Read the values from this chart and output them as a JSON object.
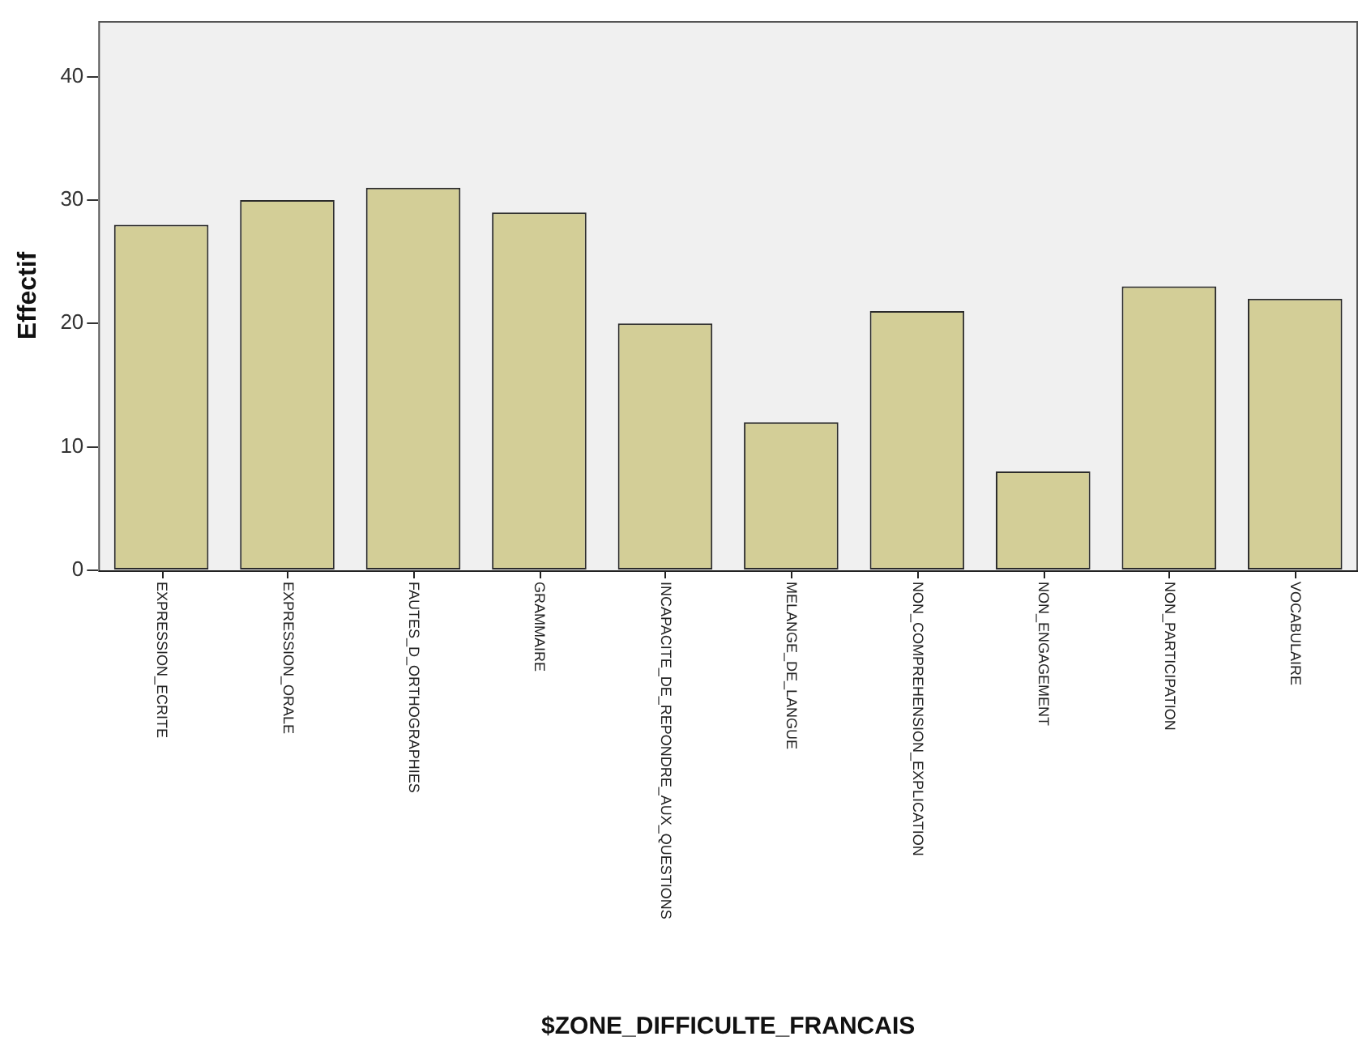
{
  "chart_data": {
    "type": "bar",
    "xlabel": "$ZONE_DIFFICULTE_FRANCAIS",
    "ylabel": "Effectif",
    "categories": [
      "EXPRESSION_ECRITE",
      "EXPRESSION_ORALE",
      "FAUTES_D_ORTHOGRAPHIES",
      "GRAMMAIRE",
      "INCAPACITE_DE_REPONDRE_AUX_QUESTIONS",
      "MELANGE_DE_LANGUE",
      "NON_COMPREHENSION_EXPLICATION",
      "NON_ENGAGEMENT",
      "NON_PARTICIPATION",
      "VOCABULAIRE"
    ],
    "values": [
      28,
      30,
      31,
      29,
      20,
      12,
      21,
      8,
      23,
      22
    ],
    "color": "#d3ce97",
    "ylim": [
      0,
      44.5
    ],
    "yticks": [
      0,
      10,
      20,
      30,
      40
    ]
  }
}
